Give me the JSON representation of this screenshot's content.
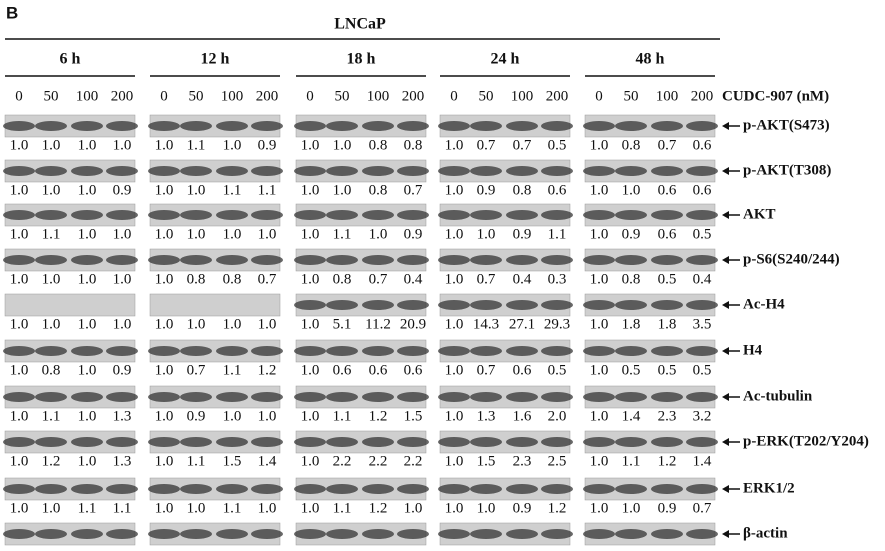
{
  "panel": "B",
  "cell_line": "LNCaP",
  "treatment": "CUDC-907 (nM)",
  "timepoints": [
    "6 h",
    "12 h",
    "18 h",
    "24 h",
    "48 h"
  ],
  "concentrations": [
    "0",
    "50",
    "100",
    "200"
  ],
  "rows": [
    {
      "label": "p-AKT(S473)",
      "values": [
        [
          "1.0",
          "1.0",
          "1.0",
          "1.0"
        ],
        [
          "1.0",
          "1.1",
          "1.0",
          "0.9"
        ],
        [
          "1.0",
          "1.0",
          "0.8",
          "0.8"
        ],
        [
          "1.0",
          "0.7",
          "0.7",
          "0.5"
        ],
        [
          "1.0",
          "0.8",
          "0.7",
          "0.6"
        ]
      ]
    },
    {
      "label": "p-AKT(T308)",
      "values": [
        [
          "1.0",
          "1.0",
          "1.0",
          "0.9"
        ],
        [
          "1.0",
          "1.0",
          "1.1",
          "1.1"
        ],
        [
          "1.0",
          "1.0",
          "0.8",
          "0.7"
        ],
        [
          "1.0",
          "0.9",
          "0.8",
          "0.6"
        ],
        [
          "1.0",
          "1.0",
          "0.6",
          "0.6"
        ]
      ]
    },
    {
      "label": "AKT",
      "values": [
        [
          "1.0",
          "1.1",
          "1.0",
          "1.0"
        ],
        [
          "1.0",
          "1.0",
          "1.0",
          "1.0"
        ],
        [
          "1.0",
          "1.1",
          "1.0",
          "0.9"
        ],
        [
          "1.0",
          "1.0",
          "0.9",
          "1.1"
        ],
        [
          "1.0",
          "0.9",
          "0.6",
          "0.5"
        ]
      ]
    },
    {
      "label": "p-S6(S240/244)",
      "values": [
        [
          "1.0",
          "1.0",
          "1.0",
          "1.0"
        ],
        [
          "1.0",
          "0.8",
          "0.8",
          "0.7"
        ],
        [
          "1.0",
          "0.8",
          "0.7",
          "0.4"
        ],
        [
          "1.0",
          "0.7",
          "0.4",
          "0.3"
        ],
        [
          "1.0",
          "0.8",
          "0.5",
          "0.4"
        ]
      ]
    },
    {
      "label": "Ac-H4",
      "values": [
        [
          "1.0",
          "1.0",
          "1.0",
          "1.0"
        ],
        [
          "1.0",
          "1.0",
          "1.0",
          "1.0"
        ],
        [
          "1.0",
          "5.1",
          "11.2",
          "20.9"
        ],
        [
          "1.0",
          "14.3",
          "27.1",
          "29.3"
        ],
        [
          "1.0",
          "1.8",
          "1.8",
          "3.5"
        ]
      ]
    },
    {
      "label": "H4",
      "values": [
        [
          "1.0",
          "0.8",
          "1.0",
          "0.9"
        ],
        [
          "1.0",
          "0.7",
          "1.1",
          "1.2"
        ],
        [
          "1.0",
          "0.6",
          "0.6",
          "0.6"
        ],
        [
          "1.0",
          "0.7",
          "0.6",
          "0.5"
        ],
        [
          "1.0",
          "0.5",
          "0.5",
          "0.5"
        ]
      ]
    },
    {
      "label": "Ac-tubulin",
      "values": [
        [
          "1.0",
          "1.1",
          "1.0",
          "1.3"
        ],
        [
          "1.0",
          "0.9",
          "1.0",
          "1.0"
        ],
        [
          "1.0",
          "1.1",
          "1.2",
          "1.5"
        ],
        [
          "1.0",
          "1.3",
          "1.6",
          "2.0"
        ],
        [
          "1.0",
          "1.4",
          "2.3",
          "3.2"
        ]
      ]
    },
    {
      "label": "p-ERK(T202/Y204)",
      "values": [
        [
          "1.0",
          "1.2",
          "1.0",
          "1.3"
        ],
        [
          "1.0",
          "1.1",
          "1.5",
          "1.4"
        ],
        [
          "1.0",
          "2.2",
          "2.2",
          "2.2"
        ],
        [
          "1.0",
          "1.5",
          "2.3",
          "2.5"
        ],
        [
          "1.0",
          "1.1",
          "1.2",
          "1.4"
        ]
      ]
    },
    {
      "label": "ERK1/2",
      "values": [
        [
          "1.0",
          "1.0",
          "1.1",
          "1.1"
        ],
        [
          "1.0",
          "1.0",
          "1.1",
          "1.0"
        ],
        [
          "1.0",
          "1.1",
          "1.2",
          "1.0"
        ],
        [
          "1.0",
          "1.0",
          "0.9",
          "1.2"
        ],
        [
          "1.0",
          "1.0",
          "0.9",
          "0.7"
        ]
      ]
    },
    {
      "label": "β-actin"
    }
  ]
}
